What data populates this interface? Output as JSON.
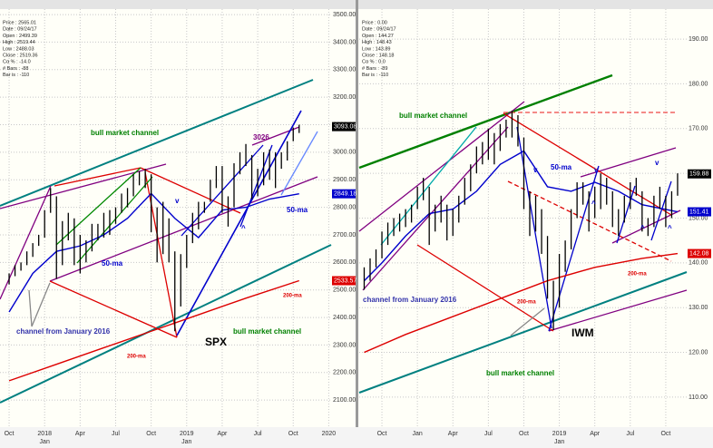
{
  "chart_data": [
    {
      "type": "ohlc",
      "info": [
        "Price : 2565.01",
        "Date : 09/24/17",
        "Open : 2499.39",
        "High : 2519.44",
        "Low : 2488.03",
        "Close : 2519.36",
        "Cα % : -14.0",
        "# Bars : -88",
        "Bar is : -110"
      ],
      "xlim": [
        -0.77,
        27.2
      ],
      "ylim": [
        2005,
        3520
      ],
      "xticks": [
        {
          "value": 0,
          "label": "Oct"
        },
        {
          "value": 3,
          "label": "2018",
          "sublabel": "Jan"
        },
        {
          "value": 6,
          "label": "Apr"
        },
        {
          "value": 9,
          "label": "Jul"
        },
        {
          "value": 12,
          "label": "Oct"
        },
        {
          "value": 15,
          "label": "2019",
          "sublabel": "Jan"
        },
        {
          "value": 18,
          "label": "Apr"
        },
        {
          "value": 21,
          "label": "Jul"
        },
        {
          "value": 24,
          "label": "Oct"
        },
        {
          "value": 27,
          "label": "2020"
        }
      ],
      "yticks": [
        {
          "value": 3500,
          "label": "3500.00"
        },
        {
          "value": 3400,
          "label": "3400.00"
        },
        {
          "value": 3300,
          "label": "3300.00"
        },
        {
          "value": 3200,
          "label": "3200.00"
        },
        {
          "value": 3100,
          "label": "3100.00"
        },
        {
          "value": 3000,
          "label": "3000.00"
        },
        {
          "value": 2900,
          "label": "2900.00"
        },
        {
          "value": 2800,
          "label": "2800.00"
        },
        {
          "value": 2700,
          "label": "2700.00"
        },
        {
          "value": 2600,
          "label": "2600.00"
        },
        {
          "value": 2500,
          "label": "2500.00"
        },
        {
          "value": 2400,
          "label": "2400.00"
        },
        {
          "value": 2300,
          "label": "2300.00"
        },
        {
          "value": 2200,
          "label": "2200.00"
        },
        {
          "value": 2100,
          "label": "2100.00"
        }
      ],
      "grid": true,
      "color": "#000000",
      "x": [
        0,
        0.5,
        1,
        1.5,
        2,
        2.5,
        3,
        3.5,
        4,
        4.5,
        5,
        5.5,
        6,
        6.5,
        7,
        7.5,
        8,
        8.5,
        9,
        9.5,
        10,
        10.5,
        11,
        11.5,
        12,
        12.5,
        13,
        13.5,
        14,
        14.5,
        15,
        15.5,
        16,
        16.5,
        17,
        17.5,
        18,
        18.5,
        19,
        19.5,
        20,
        20.5,
        21,
        21.5,
        22,
        22.5,
        23,
        23.5,
        24,
        24.5
      ],
      "high": [
        2560,
        2590,
        2600,
        2640,
        2670,
        2700,
        2790,
        2870,
        2840,
        2750,
        2780,
        2760,
        2700,
        2680,
        2740,
        2740,
        2780,
        2790,
        2800,
        2850,
        2870,
        2920,
        2930,
        2940,
        2920,
        2800,
        2820,
        2760,
        2640,
        2630,
        2700,
        2780,
        2820,
        2820,
        2900,
        2950,
        2950,
        2840,
        2960,
        3000,
        3030,
        2990,
        2940,
        3000,
        3010,
        3000,
        3000,
        3040,
        3090,
        3100
      ],
      "low": [
        2520,
        2550,
        2570,
        2590,
        2620,
        2660,
        2690,
        2780,
        2540,
        2590,
        2680,
        2590,
        2560,
        2600,
        2640,
        2680,
        2690,
        2700,
        2740,
        2780,
        2800,
        2840,
        2880,
        2870,
        2710,
        2600,
        2630,
        2600,
        2350,
        2440,
        2580,
        2670,
        2720,
        2780,
        2820,
        2870,
        2780,
        2730,
        2800,
        2920,
        2950,
        2830,
        2840,
        2880,
        2900,
        2870,
        2940,
        2970,
        3040,
        3070
      ],
      "overlays": [
        {
          "color": "#0000cc",
          "x": [
            0,
            2,
            4,
            6,
            8,
            10,
            12,
            14,
            16,
            18,
            20,
            22,
            24.5
          ],
          "values": [
            2420,
            2560,
            2640,
            2660,
            2700,
            2760,
            2850,
            2760,
            2690,
            2790,
            2800,
            2830,
            2849.18
          ]
        },
        {
          "color": "#dd0000",
          "x": [
            0,
            4,
            8,
            12,
            16,
            20,
            24.5
          ],
          "values": [
            2170,
            2230,
            2290,
            2350,
            2410,
            2470,
            2533.57
          ]
        }
      ],
      "last_labels": [
        {
          "value": 3093.08,
          "color": "#000000"
        },
        {
          "value": 2849.18,
          "color": "#0000cc"
        },
        {
          "value": 2533.57,
          "color": "#dd0000"
        }
      ],
      "annotations": [
        "bull market channel",
        "3026",
        "v",
        "50-ma",
        "50-ma",
        "^",
        "channel from January 2016",
        "SPX",
        "bull market channel",
        "200-ma",
        "200-ma"
      ]
    },
    {
      "type": "ohlc",
      "info": [
        "Price : 0.00",
        "Date : 09/24/17",
        "Open : 144.27",
        "High : 148.43",
        "Low : 143.89",
        "Close : 148.18",
        "Cα % : 0.0",
        "# Bars : -89",
        "Bar is : -110"
      ],
      "xlim": [
        -1.92,
        25.77
      ],
      "ylim": [
        103.5,
        196.7
      ],
      "xticks": [
        {
          "value": 0,
          "label": "Oct"
        },
        {
          "value": 3,
          "label": "Jan"
        },
        {
          "value": 6,
          "label": "Apr"
        },
        {
          "value": 9,
          "label": "Jul"
        },
        {
          "value": 12,
          "label": "Oct"
        },
        {
          "value": 15,
          "label": "2019",
          "sublabel": "Jan"
        },
        {
          "value": 18,
          "label": "Apr"
        },
        {
          "value": 21,
          "label": "Jul"
        },
        {
          "value": 24,
          "label": "Oct"
        }
      ],
      "yticks": [
        {
          "value": 190,
          "label": "190.00"
        },
        {
          "value": 180,
          "label": "180.00"
        },
        {
          "value": 170,
          "label": "170.00"
        },
        {
          "value": 160,
          "label": "160.00"
        },
        {
          "value": 150,
          "label": "150.00"
        },
        {
          "value": 140,
          "label": "140.00"
        },
        {
          "value": 130,
          "label": "130.00"
        },
        {
          "value": 120,
          "label": "120.00"
        },
        {
          "value": 110,
          "label": "110.00"
        }
      ],
      "grid": true,
      "color": "#000000",
      "x": [
        -1.5,
        -1,
        -0.5,
        0,
        0.5,
        1,
        1.5,
        2,
        2.5,
        3,
        3.5,
        4,
        4.5,
        5,
        5.5,
        6,
        6.5,
        7,
        7.5,
        8,
        8.5,
        9,
        9.5,
        10,
        10.5,
        11,
        11.5,
        12,
        12.5,
        13,
        13.5,
        14,
        14.5,
        15,
        15.5,
        16,
        16.5,
        17,
        17.5,
        18,
        18.5,
        19,
        19.5,
        20,
        20.5,
        21,
        21.5,
        22,
        22.5,
        23,
        23.5,
        24,
        24.5,
        25
      ],
      "high": [
        139,
        141,
        143,
        147,
        149,
        150,
        151,
        152,
        153,
        157,
        159,
        157,
        153,
        155,
        153,
        152,
        155,
        159,
        162,
        166,
        167,
        170,
        169,
        171,
        172,
        174,
        173,
        168,
        156,
        155,
        152,
        146,
        136,
        142,
        145,
        152,
        158,
        158,
        156,
        157,
        160,
        159,
        156,
        152,
        155,
        158,
        159,
        156,
        150,
        155,
        157,
        155,
        156,
        160
      ],
      "low": [
        134,
        136,
        139,
        141,
        144,
        146,
        147,
        148,
        149,
        152,
        154,
        144,
        147,
        149,
        145,
        146,
        149,
        153,
        156,
        160,
        162,
        163,
        162,
        165,
        168,
        168,
        166,
        152,
        146,
        147,
        142,
        132,
        125,
        130,
        138,
        143,
        150,
        153,
        147,
        150,
        152,
        153,
        148,
        146,
        149,
        152,
        155,
        147,
        146,
        148,
        152,
        148,
        150,
        155
      ],
      "overlays": [
        {
          "color": "#0000cc",
          "x": [
            -1.5,
            0,
            2,
            4,
            6,
            8,
            10,
            12,
            14,
            16,
            18,
            20,
            22,
            25
          ],
          "values": [
            136,
            140,
            146,
            151,
            152,
            156,
            162,
            165,
            157,
            156,
            158,
            156,
            153,
            151.41
          ]
        },
        {
          "color": "#dd0000",
          "x": [
            -1.5,
            2,
            6,
            10,
            14,
            18,
            22,
            25
          ],
          "values": [
            120,
            124,
            128,
            132,
            136,
            139,
            141,
            142.08
          ]
        }
      ],
      "last_labels": [
        {
          "value": 159.88,
          "color": "#000000"
        },
        {
          "value": 151.41,
          "color": "#0000cc"
        },
        {
          "value": 142.08,
          "color": "#dd0000"
        }
      ],
      "annotations": [
        "bull market channel",
        "v",
        "50-ma",
        "v",
        "v",
        "^",
        "^",
        "^",
        "200-ma",
        "200-ma",
        "channel from January 2016",
        "IWM",
        "bull market channel"
      ]
    }
  ]
}
